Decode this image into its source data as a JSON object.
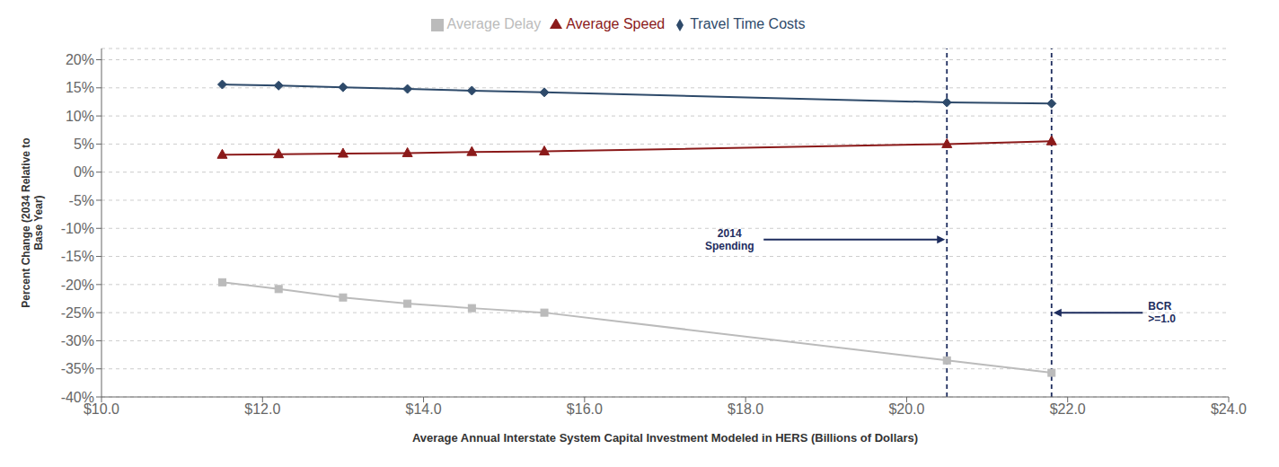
{
  "chart_data": {
    "type": "line",
    "x": [
      11.5,
      12.2,
      13.0,
      13.8,
      14.6,
      15.5,
      20.5,
      21.8
    ],
    "series": [
      {
        "name": "Travel Time Costs",
        "color": "#2E4A6A",
        "marker": "diamond",
        "values": [
          15.6,
          15.4,
          15.1,
          14.8,
          14.5,
          14.2,
          12.4,
          12.2
        ]
      },
      {
        "name": "Average Speed",
        "color": "#8B1A1A",
        "marker": "triangle",
        "values": [
          3.1,
          3.2,
          3.3,
          3.4,
          3.6,
          3.7,
          5.0,
          5.5
        ]
      },
      {
        "name": "Average Delay",
        "color": "#BBBBBB",
        "marker": "square",
        "values": [
          -19.6,
          -20.8,
          -22.3,
          -23.4,
          -24.2,
          -25.0,
          -33.5,
          -35.7
        ]
      }
    ],
    "xlabel": "Average Annual Interstate System Capital Investment Modeled in HERS (Billions of Dollars)",
    "ylabel": "Percent Change (2034 Relative to\nBase Year)",
    "xlim": [
      10.0,
      24.0
    ],
    "xticks": [
      {
        "value": 10.0,
        "label": "$10.0"
      },
      {
        "value": 12.0,
        "label": "$12.0"
      },
      {
        "value": 14.0,
        "label": "$14.0"
      },
      {
        "value": 16.0,
        "label": "$16.0"
      },
      {
        "value": 18.0,
        "label": "$18.0"
      },
      {
        "value": 20.0,
        "label": "$20.0"
      },
      {
        "value": 22.0,
        "label": "$22.0"
      },
      {
        "value": 24.0,
        "label": "$24.0"
      }
    ],
    "ylim": [
      -40,
      22
    ],
    "yticks": [
      {
        "value": -40,
        "label": "-40%"
      },
      {
        "value": -35,
        "label": "-35%"
      },
      {
        "value": -30,
        "label": "-30%"
      },
      {
        "value": -25,
        "label": "-25%"
      },
      {
        "value": -20,
        "label": "-20%"
      },
      {
        "value": -15,
        "label": "-15%"
      },
      {
        "value": -10,
        "label": "-10%"
      },
      {
        "value": -5,
        "label": "-5%"
      },
      {
        "value": 0,
        "label": "0%"
      },
      {
        "value": 5,
        "label": "5%"
      },
      {
        "value": 10,
        "label": "10%"
      },
      {
        "value": 15,
        "label": "15%"
      },
      {
        "value": 20,
        "label": "20%"
      }
    ],
    "grid": "y",
    "legend": "top",
    "vlines": [
      {
        "x": 20.5,
        "color": "#1E2D5E",
        "line_style": "dashed"
      },
      {
        "x": 21.8,
        "color": "#1E2D5E",
        "line_style": "dashed"
      }
    ],
    "annotations": [
      {
        "text": "2014\nSpending",
        "x": 20.5,
        "y": -12.0,
        "text_x": 17.8,
        "text_y": -12.0,
        "color": "#1E2D5E"
      },
      {
        "text": "BCR\n>=1.0",
        "x": 21.8,
        "y": -25.0,
        "text_x": 23.0,
        "text_y": -25.0,
        "color": "#1E2D5E"
      }
    ]
  }
}
